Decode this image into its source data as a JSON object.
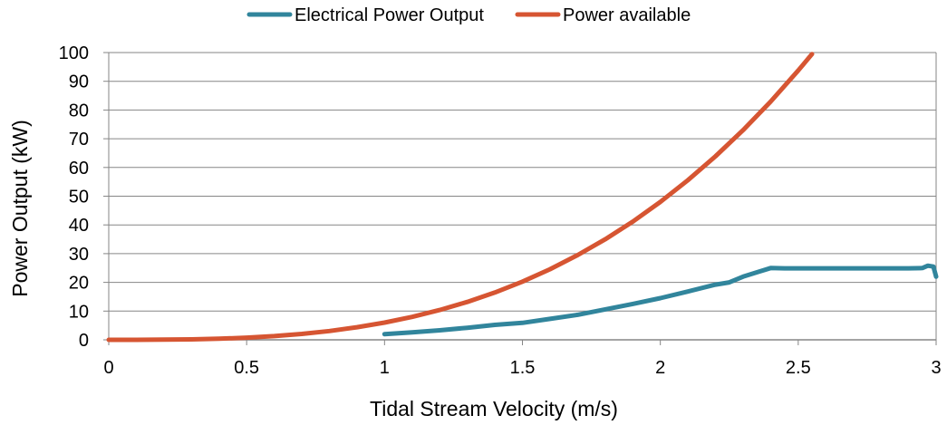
{
  "chart_data": {
    "type": "line",
    "title": "",
    "xlabel": "Tidal Stream Velocity (m/s)",
    "ylabel": "Power Output (kW)",
    "xlim": [
      0,
      3
    ],
    "ylim": [
      0,
      100
    ],
    "xticks": [
      "0",
      "0.5",
      "1",
      "1.5",
      "2",
      "2.5",
      "3"
    ],
    "xtick_values": [
      0,
      0.5,
      1,
      1.5,
      2,
      2.5,
      3
    ],
    "yticks": [
      "0",
      "10",
      "20",
      "30",
      "40",
      "50",
      "60",
      "70",
      "80",
      "90",
      "100"
    ],
    "ytick_values": [
      0,
      10,
      20,
      30,
      40,
      50,
      60,
      70,
      80,
      90,
      100
    ],
    "grid": "horizontal",
    "legend_position": "top",
    "series": [
      {
        "name": "Electrical Power Output",
        "color": "#31859C",
        "x": [
          1.0,
          1.1,
          1.2,
          1.3,
          1.4,
          1.5,
          1.6,
          1.7,
          1.8,
          1.9,
          2.0,
          2.1,
          2.2,
          2.25,
          2.3,
          2.35,
          2.4,
          2.45,
          2.5,
          2.6,
          2.7,
          2.8,
          2.9,
          2.95,
          2.97,
          2.99,
          3.0
        ],
        "y": [
          2.0,
          2.6,
          3.3,
          4.2,
          5.2,
          5.9,
          7.3,
          8.7,
          10.6,
          12.5,
          14.5,
          16.8,
          19.2,
          20.0,
          22.0,
          23.5,
          25.0,
          24.9,
          24.9,
          24.9,
          24.9,
          24.9,
          24.9,
          25.0,
          25.8,
          25.5,
          22.0
        ]
      },
      {
        "name": "Power available",
        "color": "#D65532",
        "x": [
          0,
          0.1,
          0.2,
          0.3,
          0.4,
          0.5,
          0.6,
          0.7,
          0.8,
          0.9,
          1.0,
          1.1,
          1.2,
          1.3,
          1.4,
          1.5,
          1.6,
          1.7,
          1.8,
          1.9,
          2.0,
          2.1,
          2.2,
          2.3,
          2.4,
          2.5,
          2.55
        ],
        "y": [
          0,
          0.006,
          0.048,
          0.16,
          0.38,
          0.75,
          1.3,
          2.06,
          3.07,
          4.37,
          6.0,
          7.99,
          10.37,
          13.18,
          16.46,
          20.25,
          24.58,
          29.48,
          34.99,
          41.15,
          48.0,
          55.57,
          63.89,
          73.0,
          82.94,
          93.75,
          99.46
        ]
      }
    ]
  }
}
